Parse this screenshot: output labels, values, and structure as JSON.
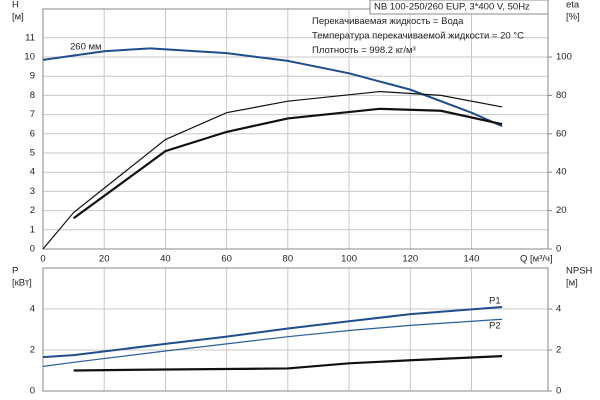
{
  "chart_data": [
    {
      "type": "line",
      "info": [
        "NB 100-250/260 EUP, 3*400 V, 50Hz",
        "Перекачиваемая жидкость = Вода",
        "Температура перекачиваемой жидкости = 20 °C",
        "Плотность = 998.2 кг/м³"
      ],
      "ylabel": [
        "H",
        "[м]"
      ],
      "y2label": [
        "eta",
        "[%]"
      ],
      "xlabel": "Q [м³/ч]",
      "xlim": [
        0,
        165
      ],
      "xticks": [
        0,
        20,
        40,
        60,
        80,
        100,
        120,
        140
      ],
      "ylim": [
        0,
        12.5
      ],
      "yticks": [
        0,
        1,
        2,
        3,
        4,
        5,
        6,
        7,
        8,
        9,
        10,
        11
      ],
      "y2lim": [
        0,
        125
      ],
      "y2ticks": [
        0,
        20,
        40,
        60,
        80,
        100
      ],
      "grid": true,
      "series": [
        {
          "name": "260 мм",
          "color": "#1f4e8c",
          "width": 2,
          "x": [
            0,
            20,
            35,
            60,
            80,
            100,
            120,
            140,
            150
          ],
          "values": [
            9.85,
            10.3,
            10.45,
            10.2,
            9.8,
            9.15,
            8.3,
            7.1,
            6.4
          ]
        },
        {
          "color": "#111111",
          "width": 1.2,
          "axis": "y2",
          "x": [
            0,
            10,
            40,
            60,
            80,
            110,
            130,
            150
          ],
          "values": [
            0,
            19,
            57,
            71,
            77,
            82,
            80,
            74
          ]
        },
        {
          "color": "#111111",
          "width": 2.2,
          "axis": "y2",
          "x": [
            10,
            40,
            60,
            80,
            110,
            130,
            150
          ],
          "values": [
            16,
            51,
            61,
            68,
            73,
            72,
            65
          ]
        }
      ]
    },
    {
      "type": "line",
      "ylabel": [
        "P",
        "[кВт]"
      ],
      "y2label": [
        "NPSH",
        "[м]"
      ],
      "xlim": [
        0,
        165
      ],
      "xticks": [
        0,
        20,
        40,
        60,
        80,
        100,
        120,
        140
      ],
      "xtick_labels": false,
      "ylim": [
        0,
        6
      ],
      "yticks": [
        0,
        2,
        4
      ],
      "y2lim": [
        0,
        6
      ],
      "y2ticks": [
        0,
        2,
        4
      ],
      "grid": true,
      "series": [
        {
          "name": "P1",
          "color": "#1f4e8c",
          "width": 2,
          "x": [
            0,
            10,
            40,
            60,
            80,
            100,
            120,
            150
          ],
          "values": [
            1.65,
            1.75,
            2.3,
            2.65,
            3.05,
            3.4,
            3.75,
            4.1
          ]
        },
        {
          "name": "P2",
          "color": "#2a5f9e",
          "width": 1.2,
          "x": [
            0,
            10,
            40,
            60,
            80,
            100,
            120,
            150
          ],
          "values": [
            1.2,
            1.4,
            1.95,
            2.3,
            2.65,
            2.95,
            3.2,
            3.5
          ]
        },
        {
          "color": "#111111",
          "width": 2.2,
          "axis": "y2",
          "x": [
            10,
            40,
            80,
            100,
            120,
            150
          ],
          "values": [
            1.0,
            1.05,
            1.1,
            1.35,
            1.5,
            1.7
          ]
        }
      ]
    }
  ]
}
